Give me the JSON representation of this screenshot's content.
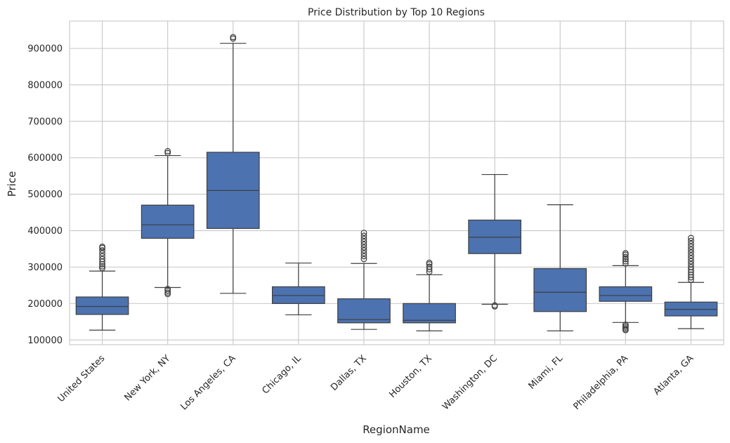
{
  "chart_data": {
    "type": "box",
    "title": "Price Distribution by Top 10 Regions",
    "xlabel": "RegionName",
    "ylabel": "Price",
    "ylim": [
      87000,
      975000
    ],
    "yticks": [
      "100000",
      "200000",
      "300000",
      "400000",
      "500000",
      "600000",
      "700000",
      "800000",
      "900000"
    ],
    "grid": true,
    "box_color": "#4c72b0",
    "categories": [
      "United States",
      "New York, NY",
      "Los Angeles, CA",
      "Chicago, IL",
      "Dallas, TX",
      "Houston, TX",
      "Washington, DC",
      "Miami, FL",
      "Philadelphia, PA",
      "Atlanta, GA"
    ],
    "boxes": [
      {
        "whisker_low": 127000,
        "q1": 170000,
        "median": 192000,
        "q3": 218000,
        "whisker_high": 289000,
        "outliers": [
          297000,
          302000,
          308000,
          315000,
          322000,
          330000,
          338000,
          346000,
          353000,
          356000
        ]
      },
      {
        "whisker_low": 244000,
        "q1": 379000,
        "median": 416000,
        "q3": 470000,
        "whisker_high": 606000,
        "outliers": [
          226000,
          230000,
          235000,
          240000,
          613000,
          618000
        ]
      },
      {
        "whisker_low": 228000,
        "q1": 406000,
        "median": 510000,
        "q3": 615000,
        "whisker_high": 914000,
        "outliers": [
          927000,
          931000
        ]
      },
      {
        "whisker_low": 169000,
        "q1": 200000,
        "median": 222000,
        "q3": 246000,
        "whisker_high": 311000,
        "outliers": []
      },
      {
        "whisker_low": 129000,
        "q1": 147000,
        "median": 156000,
        "q3": 213000,
        "whisker_high": 310000,
        "outliers": [
          322000,
          330000,
          338000,
          346000,
          354000,
          362000,
          370000,
          378000,
          386000,
          394000
        ]
      },
      {
        "whisker_low": 125000,
        "q1": 147000,
        "median": 154000,
        "q3": 200000,
        "whisker_high": 279000,
        "outliers": [
          287000,
          294000,
          301000,
          308000,
          312000
        ]
      },
      {
        "whisker_low": 198000,
        "q1": 337000,
        "median": 382000,
        "q3": 429000,
        "whisker_high": 554000,
        "outliers": [
          192000,
          195000
        ]
      },
      {
        "whisker_low": 125000,
        "q1": 178000,
        "median": 231000,
        "q3": 296000,
        "whisker_high": 471000,
        "outliers": []
      },
      {
        "whisker_low": 148000,
        "q1": 206000,
        "median": 222000,
        "q3": 246000,
        "whisker_high": 304000,
        "outliers": [
          127000,
          130000,
          134000,
          138000,
          142000,
          310000,
          316000,
          322000,
          328000,
          334000,
          338000
        ]
      },
      {
        "whisker_low": 131000,
        "q1": 166000,
        "median": 184000,
        "q3": 204000,
        "whisker_high": 258000,
        "outliers": [
          265000,
          272000,
          279000,
          286000,
          293000,
          300000,
          308000,
          316000,
          324000,
          332000,
          340000,
          348000,
          356000,
          364000,
          372000,
          380000
        ]
      }
    ]
  }
}
